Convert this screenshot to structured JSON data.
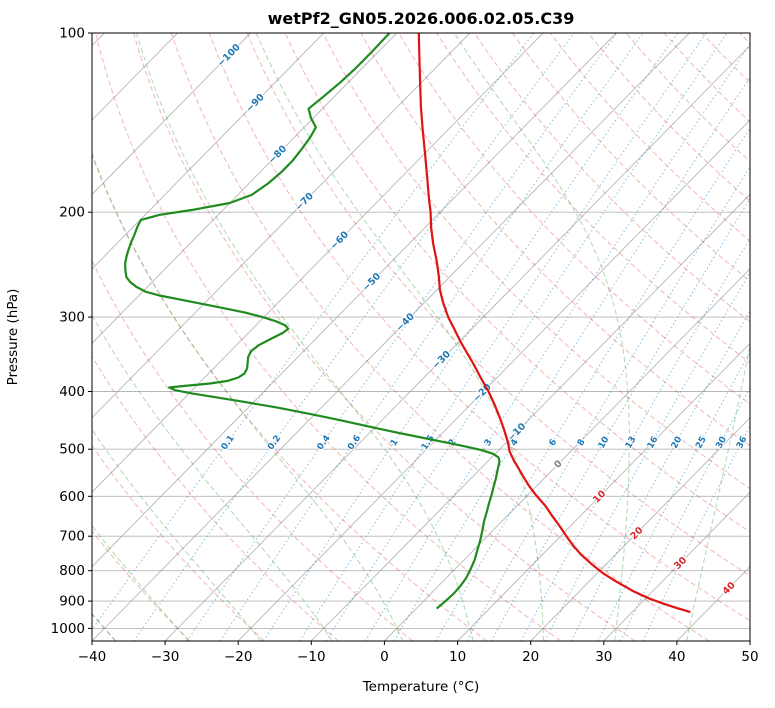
{
  "title": "wetPf2_GN05.2026.006.02.05.C39",
  "axes": {
    "x_label": "Temperature (°C)",
    "y_label": "Pressure (hPa)",
    "x_ticks": [
      {
        "v": -40,
        "label": "−40"
      },
      {
        "v": -30,
        "label": "−30"
      },
      {
        "v": -20,
        "label": "−20"
      },
      {
        "v": -10,
        "label": "−10"
      },
      {
        "v": 0,
        "label": "0"
      },
      {
        "v": 10,
        "label": "10"
      },
      {
        "v": 20,
        "label": "20"
      },
      {
        "v": 30,
        "label": "30"
      },
      {
        "v": 40,
        "label": "40"
      },
      {
        "v": 50,
        "label": "50"
      }
    ],
    "y_ticks": [
      {
        "v": 100,
        "label": "100"
      },
      {
        "v": 200,
        "label": "200"
      },
      {
        "v": 300,
        "label": "300"
      },
      {
        "v": 400,
        "label": "400"
      },
      {
        "v": 500,
        "label": "500"
      },
      {
        "v": 600,
        "label": "600"
      },
      {
        "v": 700,
        "label": "700"
      },
      {
        "v": 800,
        "label": "800"
      },
      {
        "v": 900,
        "label": "900"
      },
      {
        "v": 1000,
        "label": "1000"
      }
    ]
  },
  "chart_data": {
    "type": "skewT-logP",
    "temperature_range_c": [
      -40,
      50
    ],
    "pressure_range_hpa": [
      1050,
      100
    ],
    "skew_c_per_decade": 80,
    "grid_on": true,
    "isobars_hpa": [
      100,
      200,
      300,
      400,
      500,
      600,
      700,
      800,
      900,
      1000
    ],
    "isotherms_c": {
      "start": -120,
      "end": 50,
      "step": 10
    },
    "dry_adiabats_theta_c": {
      "start": -40,
      "end": 200,
      "step": 10
    },
    "moist_adiabats_t0_c": {
      "start": -40,
      "end": 50,
      "step": 10
    },
    "mixing_ratio_g_kg": [
      0.1,
      0.2,
      0.4,
      0.6,
      1,
      1.5,
      2,
      3,
      4,
      6,
      8,
      10,
      13,
      16,
      20,
      25,
      30,
      36
    ],
    "mixing_label_pressure_hpa": 487,
    "isotherm_labels": [
      {
        "t": -100,
        "p": 109
      },
      {
        "t": -90,
        "p": 131
      },
      {
        "t": -80,
        "p": 160
      },
      {
        "t": -70,
        "p": 192
      },
      {
        "t": -60,
        "p": 223
      },
      {
        "t": -50,
        "p": 262
      },
      {
        "t": -40,
        "p": 306
      },
      {
        "t": -30,
        "p": 354
      },
      {
        "t": -20,
        "p": 402
      },
      {
        "t": -10,
        "p": 468
      },
      {
        "t": 0,
        "p": 530
      },
      {
        "t": 10,
        "p": 601
      },
      {
        "t": 20,
        "p": 692
      },
      {
        "t": 30,
        "p": 777
      },
      {
        "t": 40,
        "p": 856
      }
    ],
    "colors": {
      "grid": "#9b9b9b",
      "dry_adiabat": "#d62728",
      "moist_adiabat": "#2ca02c",
      "mixing_line": "#1f77b4",
      "label_negative": "#1f77b4",
      "label_zero": "#808080",
      "label_positive": "#d62728",
      "temperature": "#e01212",
      "dewpoint": "#1f8b1f"
    },
    "temperature_profile_p_t": [
      [
        100,
        -77
      ],
      [
        110,
        -73.6
      ],
      [
        121,
        -70.2
      ],
      [
        133,
        -66.8
      ],
      [
        146,
        -63.3
      ],
      [
        160,
        -59.8
      ],
      [
        175,
        -56.4
      ],
      [
        190,
        -53.3
      ],
      [
        200,
        -51.3
      ],
      [
        212,
        -49.2
      ],
      [
        226,
        -46.7
      ],
      [
        241,
        -44
      ],
      [
        256,
        -41.6
      ],
      [
        270,
        -39.6
      ],
      [
        284,
        -37.4
      ],
      [
        300,
        -34.8
      ],
      [
        314,
        -32.4
      ],
      [
        330,
        -29.8
      ],
      [
        346,
        -27.2
      ],
      [
        362,
        -24.7
      ],
      [
        380,
        -22.1
      ],
      [
        400,
        -19.3
      ],
      [
        420,
        -16.8
      ],
      [
        442,
        -14.3
      ],
      [
        465,
        -11.9
      ],
      [
        487,
        -9.8
      ],
      [
        505,
        -8.3
      ],
      [
        522,
        -6.6
      ],
      [
        540,
        -4.7
      ],
      [
        558,
        -2.9
      ],
      [
        578,
        -0.9
      ],
      [
        598,
        1.2
      ],
      [
        622,
        3.8
      ],
      [
        648,
        6.2
      ],
      [
        673,
        8.5
      ],
      [
        700,
        10.8
      ],
      [
        726,
        13
      ],
      [
        752,
        15.3
      ],
      [
        780,
        18
      ],
      [
        808,
        20.8
      ],
      [
        836,
        23.9
      ],
      [
        864,
        27.1
      ],
      [
        890,
        30.4
      ],
      [
        908,
        33
      ],
      [
        924,
        35.5
      ],
      [
        938,
        37.8
      ]
    ],
    "dewpoint_profile_p_t": [
      [
        100,
        -81
      ],
      [
        107,
        -80.9
      ],
      [
        114,
        -80.9
      ],
      [
        121,
        -81.1
      ],
      [
        128,
        -81.5
      ],
      [
        134,
        -81.9
      ],
      [
        139,
        -80.3
      ],
      [
        144,
        -78.4
      ],
      [
        150,
        -77.8
      ],
      [
        157,
        -77.4
      ],
      [
        164,
        -77.1
      ],
      [
        171,
        -77.1
      ],
      [
        179,
        -77.4
      ],
      [
        187,
        -78.1
      ],
      [
        193,
        -80
      ],
      [
        198,
        -84
      ],
      [
        202,
        -88
      ],
      [
        206,
        -89.9
      ],
      [
        211,
        -89.5
      ],
      [
        218,
        -88.8
      ],
      [
        226,
        -88.1
      ],
      [
        235,
        -87.2
      ],
      [
        243,
        -86.3
      ],
      [
        250,
        -85.3
      ],
      [
        257,
        -84.2
      ],
      [
        262,
        -83
      ],
      [
        267,
        -81.5
      ],
      [
        272,
        -79.6
      ],
      [
        276,
        -77.2
      ],
      [
        280,
        -74.1
      ],
      [
        285,
        -70.3
      ],
      [
        290,
        -66.6
      ],
      [
        295,
        -63.1
      ],
      [
        300,
        -60.2
      ],
      [
        305,
        -57.8
      ],
      [
        310,
        -55.9
      ],
      [
        314,
        -55.1
      ],
      [
        319,
        -55.3
      ],
      [
        326,
        -56.1
      ],
      [
        334,
        -56.9
      ],
      [
        342,
        -57.2
      ],
      [
        350,
        -56.8
      ],
      [
        358,
        -56.1
      ],
      [
        366,
        -55.4
      ],
      [
        373,
        -55.1
      ],
      [
        379,
        -55.4
      ],
      [
        384,
        -56.4
      ],
      [
        388,
        -58.6
      ],
      [
        391,
        -61.3
      ],
      [
        394,
        -63.5
      ],
      [
        398,
        -62.3
      ],
      [
        403,
        -59.6
      ],
      [
        409,
        -55.9
      ],
      [
        417,
        -51
      ],
      [
        426,
        -45.9
      ],
      [
        436,
        -40.9
      ],
      [
        446,
        -36.2
      ],
      [
        457,
        -31.4
      ],
      [
        468,
        -26.7
      ],
      [
        478,
        -22.3
      ],
      [
        487,
        -18.4
      ],
      [
        495,
        -15
      ],
      [
        502,
        -12.3
      ],
      [
        509,
        -10.3
      ],
      [
        516,
        -9.1
      ],
      [
        524,
        -8.4
      ],
      [
        534,
        -7.9
      ],
      [
        546,
        -7.3
      ],
      [
        560,
        -6.6
      ],
      [
        576,
        -5.9
      ],
      [
        594,
        -5.1
      ],
      [
        614,
        -4.3
      ],
      [
        636,
        -3.4
      ],
      [
        660,
        -2.5
      ],
      [
        686,
        -1.4
      ],
      [
        712,
        -0.4
      ],
      [
        739,
        0.5
      ],
      [
        766,
        1.4
      ],
      [
        794,
        2.1
      ],
      [
        822,
        2.7
      ],
      [
        850,
        3
      ],
      [
        876,
        3.1
      ],
      [
        900,
        3
      ],
      [
        914,
        2.9
      ],
      [
        924,
        2.8
      ]
    ]
  }
}
